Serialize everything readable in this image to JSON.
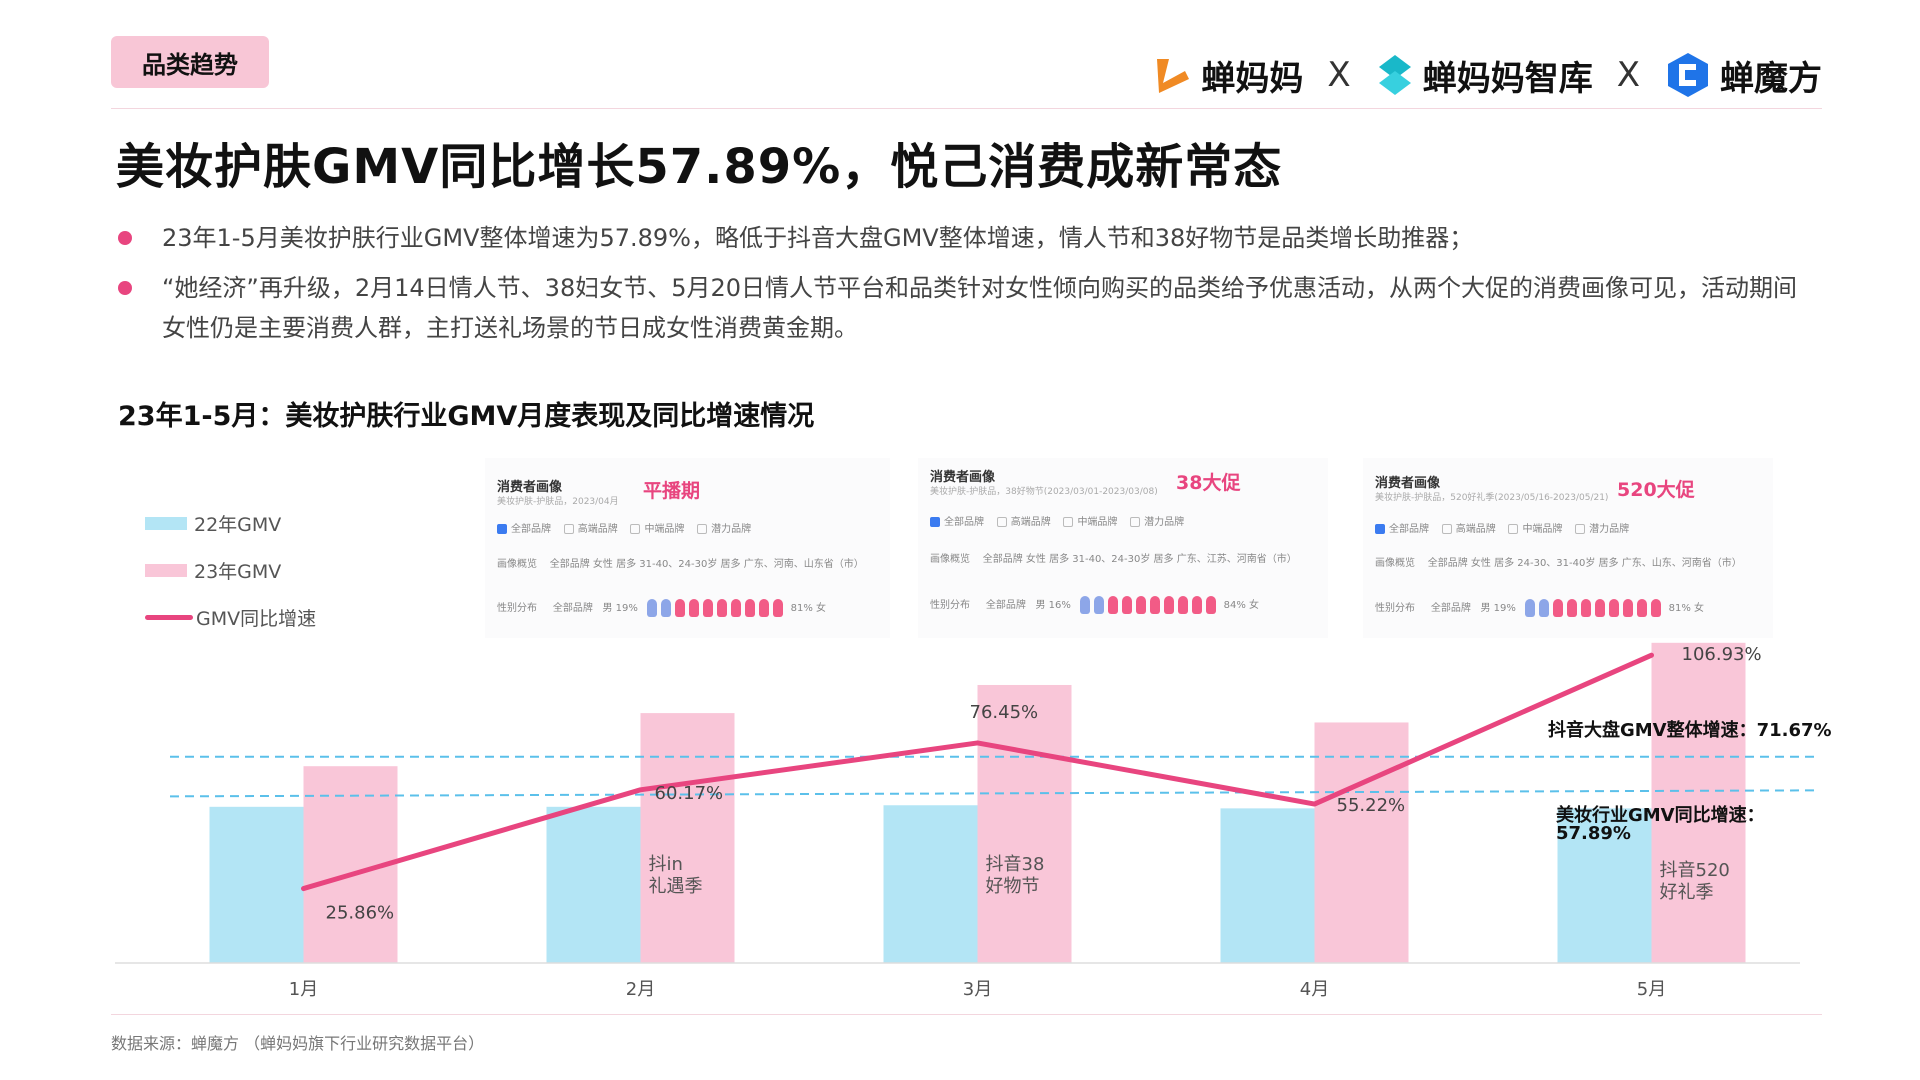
{
  "tag": "品类趋势",
  "logos": [
    "蝉妈妈",
    "X",
    "蝉妈妈智库",
    "X",
    "蝉魔方"
  ],
  "headline": "美妆护肤GMV同比增长57.89%，悦己消费成新常态",
  "bullets": [
    "23年1-5月美妆护肤行业GMV整体增速为57.89%，略低于抖音大盘GMV整体增速，情人节和38好物节是品类增长助推器；",
    "“她经济”再升级，2月14日情人节、38妇女节、5月20日情人节平台和品类针对女性倾向购买的品类给予优惠活动，从两个大促的消费画像可见，活动期间女性仍是主要消费人群，主打送礼场景的节日成女性消费黄金期。"
  ],
  "chart_title": "23年1-5月：美妆护肤行业GMV月度表现及同比增速情况",
  "legend": [
    "22年GMV",
    "23年GMV",
    "GMV同比增速"
  ],
  "panels": [
    {
      "head": "消费者画像",
      "sub": "美妆护肤-护肤品，2023/04月",
      "title": "平播期",
      "checks": [
        "全部品牌",
        "高端品牌",
        "中端品牌",
        "潜力品牌"
      ],
      "overview_label": "画像概览",
      "overview": "全部品牌    女性 居多    31-40、24-30岁 居多    广东、河南、山东省（市）",
      "gender_label": "性别分布",
      "gender_scope": "全部品牌",
      "male": "男 19%",
      "female": "81% 女"
    },
    {
      "head": "消费者画像",
      "sub": "美妆护肤-护肤品，38好物节(2023/03/01-2023/03/08)",
      "title": "38大促",
      "checks": [
        "全部品牌",
        "高端品牌",
        "中端品牌",
        "潜力品牌"
      ],
      "overview_label": "画像概览",
      "overview": "全部品牌    女性 居多    31-40、24-30岁 居多    广东、江苏、河南省（市）",
      "gender_label": "性别分布",
      "gender_scope": "全部品牌",
      "male": "男 16%",
      "female": "84% 女"
    },
    {
      "head": "消费者画像",
      "sub": "美妆护肤-护肤品，520好礼季(2023/05/16-2023/05/21)",
      "title": "520大促",
      "checks": [
        "全部品牌",
        "高端品牌",
        "中端品牌",
        "潜力品牌"
      ],
      "overview_label": "画像概览",
      "overview": "全部品牌    女性 居多    24-30、31-40岁 居多    广东、山东、河南省（市）",
      "gender_label": "性别分布",
      "gender_scope": "全部品牌",
      "male": "男 19%",
      "female": "81% 女"
    }
  ],
  "ref_lines": {
    "douyin": "抖音大盘GMV整体增速：71.67%",
    "beauty_line1": "美妆行业GMV同比增速：",
    "beauty_line2": "57.89%"
  },
  "source": "数据来源：蝉魔方   （蝉妈妈旗下行业研究数据平台）",
  "colors": {
    "gmv22": "#b3e5f5",
    "gmv23": "#f9c6d8",
    "growth": "#e8457f",
    "ref": "#5bc0ea",
    "accent": "#e8457f"
  },
  "chart_data": {
    "type": "bar",
    "categories": [
      "1月",
      "2月",
      "3月",
      "4月",
      "5月"
    ],
    "series": [
      {
        "name": "22年GMV",
        "values": [
          100,
          100,
          101,
          99,
          99
        ]
      },
      {
        "name": "23年GMV",
        "values": [
          126,
          160,
          178,
          154,
          205
        ]
      },
      {
        "name": "GMV同比增速",
        "type": "line",
        "values": [
          25.86,
          60.17,
          76.45,
          55.22,
          106.93
        ],
        "labels": [
          "25.86%",
          "60.17%",
          "76.45%",
          "55.22%",
          "106.93%"
        ]
      }
    ],
    "bar_annotations": [
      "",
      "抖in\n礼遇季",
      "抖音38\n好物节",
      "",
      "抖音520\n好礼季"
    ],
    "reference_lines": [
      {
        "label": "抖音大盘GMV整体增速：71.67%",
        "value": 71.67
      },
      {
        "label": "美妆行业GMV同比增速：57.89%",
        "value": 57.89
      }
    ],
    "y_range": [
      0,
      210
    ],
    "y2_range": [
      0,
      140
    ],
    "legend": "left",
    "grid": false
  }
}
